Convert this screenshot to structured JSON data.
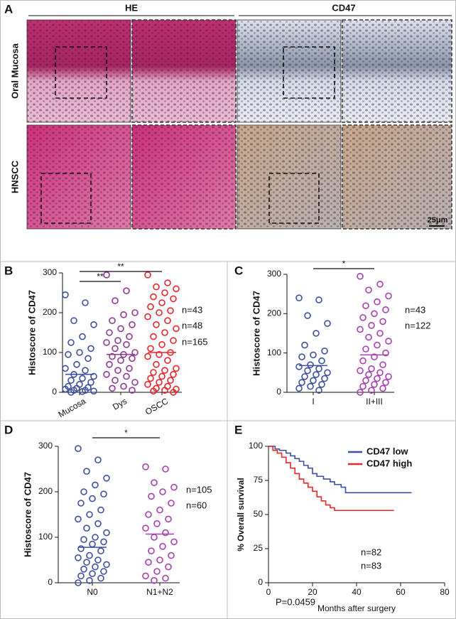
{
  "panel_a": {
    "label": "A",
    "columns": [
      "HE",
      "CD47"
    ],
    "rows": [
      "Oral Mucosa",
      "HNSCC"
    ],
    "scale_bar": "25μm"
  },
  "chart_data": [
    {
      "type": "strip",
      "panel": "B",
      "ylabel": "Histoscore of CD47",
      "ylim": [
        0,
        300
      ],
      "yticks": [
        0,
        100,
        200,
        300
      ],
      "categories": [
        "Mucosa",
        "Dys",
        "OSCC"
      ],
      "series": [
        {
          "color": "#3d4fa1",
          "mean": 45,
          "count_label": "n=43",
          "values": [
            245,
            225,
            180,
            170,
            140,
            125,
            110,
            100,
            95,
            85,
            70,
            60,
            55,
            45,
            40,
            35,
            30,
            25,
            20,
            15,
            12,
            10,
            8,
            5,
            5,
            3,
            2,
            0
          ]
        },
        {
          "color": "#8e3a96",
          "mean": 95,
          "count_label": "n=48",
          "values": [
            295,
            255,
            230,
            200,
            195,
            180,
            170,
            160,
            150,
            140,
            130,
            125,
            120,
            110,
            100,
            95,
            90,
            85,
            80,
            70,
            60,
            55,
            45,
            40,
            30,
            25,
            15,
            10,
            5
          ]
        },
        {
          "color": "#e8262a",
          "mean": 100,
          "count_label": "n=165",
          "values": [
            295,
            275,
            265,
            260,
            250,
            240,
            235,
            225,
            215,
            205,
            200,
            190,
            180,
            170,
            160,
            150,
            140,
            130,
            120,
            110,
            100,
            95,
            90,
            80,
            70,
            60,
            55,
            50,
            45,
            40,
            35,
            30,
            25,
            20,
            15,
            10,
            8,
            5,
            3,
            0
          ]
        }
      ],
      "brackets": [
        {
          "between": [
            "Mucosa",
            "OSCC"
          ],
          "label": "**"
        },
        {
          "between": [
            "Mucosa",
            "Dys"
          ],
          "label": "**"
        }
      ]
    },
    {
      "type": "strip",
      "panel": "C",
      "ylabel": "Histoscore of CD47",
      "ylim": [
        0,
        300
      ],
      "yticks": [
        0,
        100,
        200,
        300
      ],
      "categories": [
        "I",
        "II+III"
      ],
      "series": [
        {
          "color": "#3d4fa1",
          "mean": 68,
          "count_label": "n=43",
          "values": [
            240,
            235,
            195,
            175,
            150,
            120,
            105,
            95,
            90,
            80,
            70,
            65,
            60,
            55,
            50,
            45,
            40,
            35,
            30,
            25,
            20,
            15,
            10,
            5
          ]
        },
        {
          "color": "#a83fb0",
          "mean": 95,
          "count_label": "n=122",
          "values": [
            295,
            275,
            260,
            245,
            230,
            220,
            210,
            200,
            190,
            180,
            170,
            160,
            150,
            140,
            130,
            120,
            110,
            100,
            90,
            80,
            70,
            60,
            55,
            50,
            45,
            40,
            35,
            30,
            25,
            20,
            15,
            10,
            5,
            0
          ]
        }
      ],
      "brackets": [
        {
          "between": [
            "I",
            "II+III"
          ],
          "label": "*"
        }
      ]
    },
    {
      "type": "strip",
      "panel": "D",
      "ylabel": "Histoscore of CD47",
      "ylim": [
        0,
        300
      ],
      "yticks": [
        0,
        100,
        200,
        300
      ],
      "categories": [
        "N0",
        "N1+N2"
      ],
      "series": [
        {
          "color": "#3d4fa1",
          "mean": 78,
          "count_label": "n=105",
          "values": [
            295,
            270,
            245,
            230,
            215,
            200,
            195,
            185,
            175,
            160,
            150,
            140,
            130,
            120,
            110,
            100,
            95,
            90,
            85,
            75,
            70,
            60,
            55,
            50,
            45,
            40,
            35,
            30,
            25,
            20,
            15,
            10,
            5,
            0
          ]
        },
        {
          "color": "#a83fb0",
          "mean": 107,
          "count_label": "n=60",
          "values": [
            255,
            250,
            220,
            210,
            200,
            190,
            175,
            160,
            150,
            140,
            130,
            120,
            110,
            100,
            90,
            80,
            70,
            60,
            50,
            45,
            35,
            25,
            15,
            10,
            5
          ]
        }
      ],
      "brackets": [
        {
          "between": [
            "N0",
            "N1+N2"
          ],
          "label": "*"
        }
      ]
    },
    {
      "type": "step",
      "panel": "E",
      "xlabel": "Months after surgery",
      "ylabel": "% Overall survival",
      "xlim": [
        0,
        80
      ],
      "xticks": [
        0,
        20,
        40,
        60,
        80
      ],
      "ylim": [
        0,
        100
      ],
      "yticks": [
        0,
        25,
        50,
        75,
        100
      ],
      "series": [
        {
          "name": "CD47  low",
          "color": "#3d4fa1",
          "count_label": "n=82",
          "x": [
            0,
            3,
            5,
            8,
            10,
            12,
            14,
            16,
            18,
            20,
            22,
            25,
            28,
            30,
            33,
            35,
            45,
            55,
            65
          ],
          "values": [
            100,
            98,
            97,
            95,
            93,
            91,
            89,
            86,
            84,
            80,
            78,
            76,
            74,
            72,
            70,
            66,
            66,
            66,
            66
          ]
        },
        {
          "name": "CD47 high",
          "color": "#e8262a",
          "count_label": "n=83",
          "x": [
            0,
            2,
            4,
            6,
            8,
            10,
            12,
            14,
            16,
            18,
            20,
            22,
            24,
            26,
            28,
            30,
            40,
            50,
            57
          ],
          "values": [
            100,
            97,
            95,
            92,
            88,
            84,
            80,
            76,
            73,
            70,
            67,
            63,
            60,
            57,
            55,
            53,
            53,
            53,
            53
          ]
        }
      ],
      "annotation": "P=0.0459"
    }
  ]
}
